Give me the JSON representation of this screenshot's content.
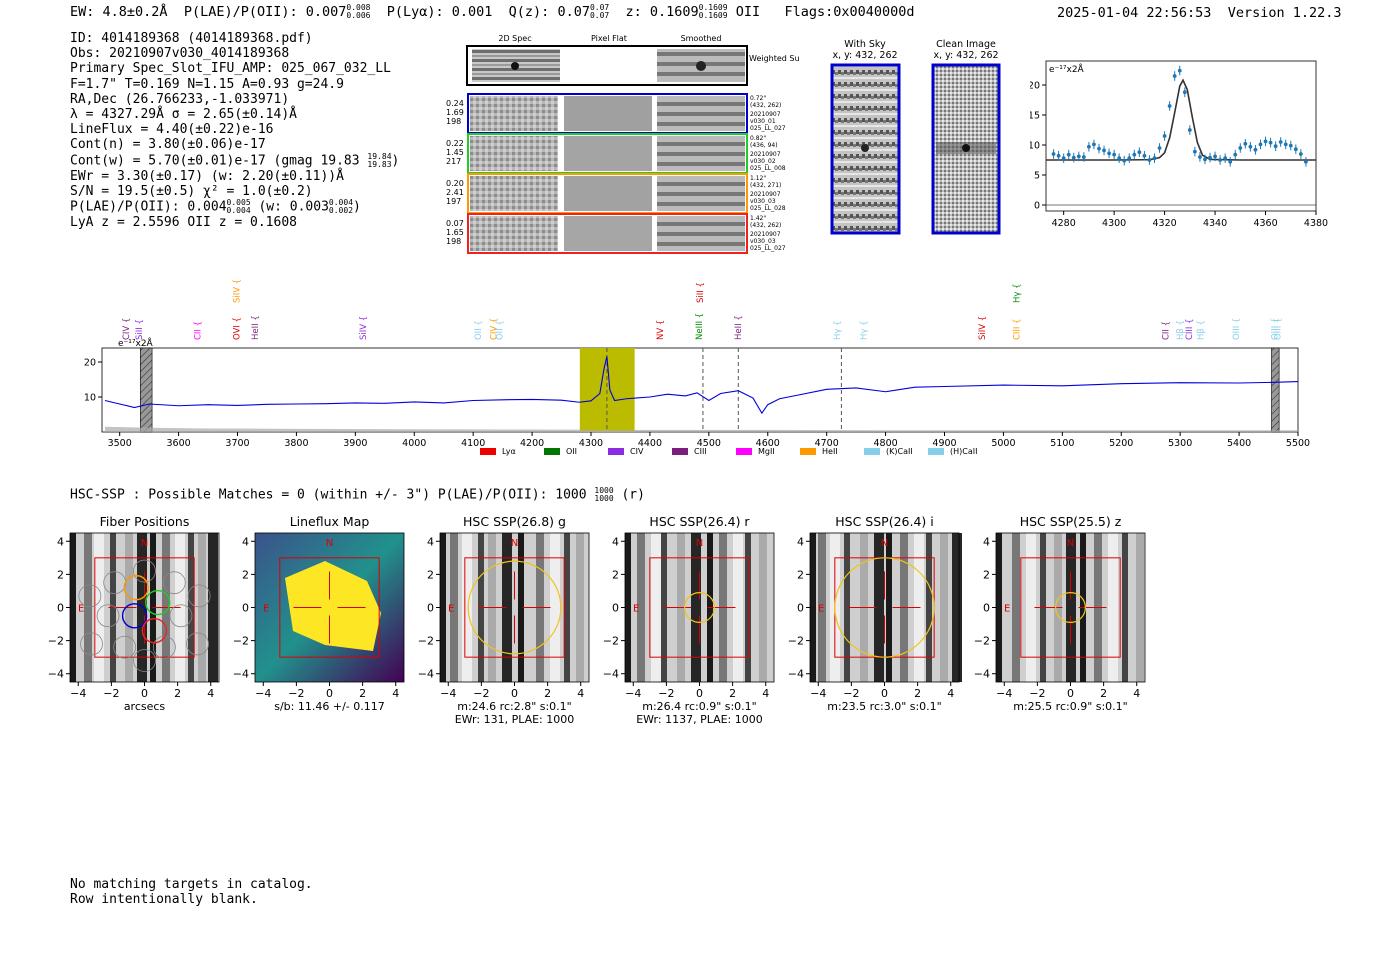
{
  "header": {
    "ew": "EW: 4.8±0.2Å",
    "plae": "P(LAE)/P(OII): 0.007",
    "plae_hi": "0.008",
    "plae_lo": "0.006",
    "plya": "P(Lyα): 0.001",
    "qz": "Q(z): 0.07",
    "qz_hi": "0.07",
    "qz_lo": "0.07",
    "z": "z: 0.1609",
    "z_hi": "0.1609",
    "z_lo": "0.1609",
    "z_line": "OII",
    "flags": "Flags:0x0040000d",
    "datetime": "2025-01-04 22:56:53",
    "version": "Version 1.22.3"
  },
  "info": {
    "id": "ID: 4014189368 (4014189368.pdf)",
    "obs": "Obs: 20210907v030_4014189368",
    "primary": "Primary Spec_Slot_IFU_AMP: 025_067_032_LL",
    "params": "F=1.7\"  T=0.169  N=1.15  A=0.93  g=24.9",
    "radec": "RA,Dec (26.766233,-1.033971)",
    "lambda": "λ = 4327.29Å   σ = 2.65(±0.14)Å",
    "lineflux": "LineFlux = 4.40(±0.22)e-16",
    "contn": "Cont(n) = 3.80(±0.06)e-17",
    "contw": "Cont(w) = 5.70(±0.01)e-17 (gmag 19.83",
    "gmag_hi": "19.84",
    "gmag_lo": "19.83",
    "contw_end": ")",
    "ewr": "EWr = 3.30(±0.17) (w: 2.20(±0.11))Å",
    "sn": "S/N = 19.5(±0.5)   χ² = 1.0(±0.2)",
    "plae2": "P(LAE)/P(OII): 0.004",
    "plae2_hi": "0.005",
    "plae2_lo": "0.004",
    "plae2_w": "(w: 0.003",
    "plae2_w_hi": "0.004",
    "plae2_w_lo": "0.002",
    "plae2_end": ")",
    "lyaz": "LyA z = 2.5596  OII z = 0.1608"
  },
  "cutouts": {
    "col_labels": [
      "2D Spec",
      "Pixel Flat",
      "Smoothed"
    ],
    "weighted_label": "Weighted Sum",
    "rows": [
      {
        "left": [
          "0.24",
          "1.69",
          "198"
        ],
        "right": [
          "0.72\"",
          "(432, 262)",
          "20210907",
          "v030_01",
          "025_LL_027"
        ],
        "color": "#0000cc"
      },
      {
        "left": [
          "0.22",
          "1.45",
          "217"
        ],
        "right": [
          "0.82\"",
          "(436, 94)",
          "20210907",
          "v030_02",
          "025_LL_008"
        ],
        "color": "#22cc22"
      },
      {
        "left": [
          "0.20",
          "2.41",
          "197"
        ],
        "right": [
          "1.12\"",
          "(432, 271)",
          "20210907",
          "v030_03",
          "025_LL_028"
        ],
        "color": "#ff9900"
      },
      {
        "left": [
          "0.07",
          "1.65",
          "198"
        ],
        "right": [
          "1.42\"",
          "(432, 262)",
          "20210907",
          "v030_03",
          "025_LL_027"
        ],
        "color": "#ee2222"
      }
    ]
  },
  "sky": {
    "with_sky_title": "With Sky",
    "with_sky_coords": "x, y: 432, 262",
    "clean_title": "Clean Image",
    "clean_coords": "x, y: 432, 262"
  },
  "fit_chart": {
    "unit_label": "e⁻¹⁷x2Å"
  },
  "spectrum_chart": {
    "unit_label": "e⁻¹⁷x2Å"
  },
  "matches": {
    "text": "HSC-SSP : Possible Matches = 0 (within +/- 3\")  P(LAE)/P(OII): 1000",
    "hi": "1000",
    "lo": "1000",
    "end": "(r)"
  },
  "panels": [
    {
      "title": "Fiber Positions",
      "xlabel": "arcsecs",
      "sub": ""
    },
    {
      "title": "Lineflux Map",
      "xlabel": "s/b: 11.46 +/- 0.117",
      "sub": ""
    },
    {
      "title": "HSC SSP(26.8) g",
      "xlabel": "m:24.6 rc:2.8\"  s:0.1\"",
      "sub": "EWr: 131, PLAE: 1000"
    },
    {
      "title": "HSC SSP(26.4) r",
      "xlabel": "m:26.4 rc:0.9\"  s:0.1\"",
      "sub": "EWr: 1137, PLAE: 1000"
    },
    {
      "title": "HSC SSP(26.4) i",
      "xlabel": "m:23.5 rc:3.0\"  s:0.1\"",
      "sub": ""
    },
    {
      "title": "HSC SSP(25.5) z",
      "xlabel": "m:25.5 rc:0.9\"  s:0.1\"",
      "sub": ""
    }
  ],
  "panel_marks": {
    "north": "N",
    "east": "E"
  },
  "footer": {
    "line1": "No matching targets in catalog.",
    "line2": "Row intentionally blank."
  },
  "chart_data": [
    {
      "type": "scatter",
      "title": "",
      "xlabel": "",
      "ylabel": "e⁻¹⁷x2Å",
      "xlim": [
        4273,
        4380
      ],
      "ylim": [
        -1,
        24
      ],
      "xticks": [
        4280,
        4300,
        4320,
        4340,
        4360,
        4380
      ],
      "yticks": [
        0,
        5,
        10,
        15,
        20
      ],
      "series": [
        {
          "kind": "points_with_errorbars",
          "color": "#1f77b4",
          "x": [
            4276,
            4278,
            4280,
            4282,
            4284,
            4286,
            4288,
            4290,
            4292,
            4294,
            4296,
            4298,
            4300,
            4302,
            4304,
            4306,
            4308,
            4310,
            4312,
            4314,
            4316,
            4318,
            4320,
            4322,
            4324,
            4326,
            4328,
            4330,
            4332,
            4334,
            4336,
            4338,
            4340,
            4342,
            4344,
            4346,
            4348,
            4350,
            4352,
            4354,
            4356,
            4358,
            4360,
            4362,
            4364,
            4366,
            4368,
            4370,
            4372,
            4374,
            4376
          ],
          "y": [
            8.5,
            8.2,
            7.8,
            8.4,
            7.9,
            8.1,
            8.0,
            9.7,
            10.1,
            9.4,
            9.1,
            8.6,
            8.4,
            7.8,
            7.4,
            7.8,
            8.4,
            8.8,
            8.2,
            7.5,
            7.8,
            9.5,
            11.5,
            16.5,
            21.5,
            22.4,
            18.8,
            12.5,
            8.9,
            8.0,
            7.6,
            7.9,
            8.1,
            7.5,
            7.8,
            7.2,
            8.4,
            9.5,
            10.2,
            9.7,
            9.2,
            10.1,
            10.6,
            10.4,
            9.8,
            10.5,
            10.1,
            9.9,
            9.3,
            8.5,
            7.2
          ],
          "err": 0.8
        },
        {
          "kind": "model_line",
          "color": "#333333",
          "x": [
            4273,
            4300,
            4314,
            4318,
            4320,
            4322,
            4324,
            4326,
            4327.3,
            4329,
            4331,
            4333,
            4335,
            4338,
            4350,
            4380
          ],
          "y": [
            7.5,
            7.5,
            7.55,
            7.9,
            8.7,
            11.2,
            15.4,
            19.8,
            20.8,
            19.2,
            14.6,
            10.4,
            8.3,
            7.6,
            7.5,
            7.5
          ]
        }
      ]
    },
    {
      "type": "line",
      "title": "",
      "xlabel": "",
      "ylabel": "e⁻¹⁷x2Å",
      "xlim": [
        3470,
        5500
      ],
      "ylim": [
        0,
        24
      ],
      "xticks": [
        3500,
        3600,
        3700,
        3800,
        3900,
        4000,
        4100,
        4200,
        4300,
        4400,
        4500,
        4600,
        4700,
        4800,
        4900,
        5000,
        5100,
        5200,
        5300,
        5400,
        5500
      ],
      "yticks": [
        10,
        20
      ],
      "series": [
        {
          "name": "spectrum",
          "color": "#0000dd",
          "x": [
            3475,
            3500,
            3525,
            3550,
            3600,
            3650,
            3700,
            3750,
            3800,
            3850,
            3900,
            3950,
            4000,
            4050,
            4100,
            4150,
            4200,
            4250,
            4280,
            4300,
            4315,
            4322,
            4327,
            4332,
            4340,
            4360,
            4400,
            4430,
            4460,
            4480,
            4500,
            4520,
            4550,
            4575,
            4590,
            4600,
            4620,
            4650,
            4700,
            4750,
            4800,
            4850,
            4900,
            5000,
            5100,
            5200,
            5300,
            5400,
            5460,
            5500
          ],
          "y": [
            9,
            8,
            7,
            8,
            7.5,
            7.8,
            7.6,
            7.9,
            8.0,
            8.1,
            8.3,
            8.2,
            8.6,
            8.3,
            9.0,
            9.2,
            9.3,
            9.1,
            8.5,
            8.9,
            11,
            18,
            21.6,
            12,
            9,
            9.5,
            10.0,
            10.8,
            10.3,
            11.2,
            9.0,
            11.0,
            11.8,
            9.7,
            5.4,
            7.8,
            9.5,
            10.5,
            12.2,
            12.6,
            11.5,
            12.8,
            13.0,
            13.4,
            13.2,
            13.8,
            14.1,
            14.0,
            14.2,
            14.4
          ]
        },
        {
          "name": "error",
          "color": "#aaaaaa",
          "x": [
            3475,
            3550,
            3650,
            3800,
            4000,
            4200,
            4400,
            4600,
            4800,
            5000,
            5200,
            5400,
            5500
          ],
          "y": [
            1.5,
            1.2,
            1.0,
            0.9,
            0.8,
            0.7,
            0.6,
            0.6,
            0.5,
            0.5,
            0.5,
            0.5,
            0.5
          ]
        }
      ],
      "highlight_band": {
        "x": [
          4281,
          4374
        ],
        "color": "#bbbb00"
      },
      "hatched_regions": [
        [
          3535,
          3555
        ],
        [
          5455,
          5468
        ]
      ],
      "dashed_lines": [
        4327,
        4490,
        4550,
        4725
      ],
      "line_labels": [
        {
          "label": "CIV",
          "x": 3516,
          "color": "#7a1f7a"
        },
        {
          "label": "SiII",
          "x": 3538,
          "color": "#8b2be2"
        },
        {
          "label": "CII",
          "x": 3637,
          "color": "#ff00ff"
        },
        {
          "label": "OVI",
          "x": 3703,
          "color": "#dd0000"
        },
        {
          "label": "SiIV",
          "x": 3703,
          "color": "#ff9900"
        },
        {
          "label": "HeII",
          "x": 3735,
          "color": "#7a1f7a"
        },
        {
          "label": "SiIV",
          "x": 3918,
          "color": "#8b2be2"
        },
        {
          "label": "OII",
          "x": 4113,
          "color": "#87ceeb"
        },
        {
          "label": "CIV",
          "x": 4140,
          "color": "#ff9900"
        },
        {
          "label": "OII",
          "x": 4150,
          "color": "#87ceeb"
        },
        {
          "label": "NV",
          "x": 4422,
          "color": "#dd0000"
        },
        {
          "label": "NeIII",
          "x": 4488,
          "color": "#008800"
        },
        {
          "label": "SiII",
          "x": 4490,
          "color": "#dd0000"
        },
        {
          "label": "HeII",
          "x": 4555,
          "color": "#7a1f7a"
        },
        {
          "label": "Hγ",
          "x": 4723,
          "color": "#87ceeb"
        },
        {
          "label": "Hγ",
          "x": 4768,
          "color": "#87ceeb"
        },
        {
          "label": "SiIV",
          "x": 4969,
          "color": "#dd0000"
        },
        {
          "label": "CIII",
          "x": 5027,
          "color": "#ff9900"
        },
        {
          "label": "Hγ",
          "x": 5027,
          "color": "#008800"
        },
        {
          "label": "CII",
          "x": 5280,
          "color": "#7a1f7a"
        },
        {
          "label": "Hβ",
          "x": 5305,
          "color": "#87ceeb"
        },
        {
          "label": "CIII",
          "x": 5320,
          "color": "#8b2be2"
        },
        {
          "label": "Hβ",
          "x": 5340,
          "color": "#87ceeb"
        },
        {
          "label": "OIII",
          "x": 5400,
          "color": "#87ceeb"
        },
        {
          "label": "OIII",
          "x": 5465,
          "color": "#87ceeb"
        },
        {
          "label": "OIII",
          "x": 5470,
          "color": "#87ceeb"
        }
      ],
      "legend": [
        {
          "name": "Lyα",
          "color": "#ee0000"
        },
        {
          "name": "OII",
          "color": "#007700"
        },
        {
          "name": "CIV",
          "color": "#8b2be2"
        },
        {
          "name": "CIII",
          "color": "#7a1f7a"
        },
        {
          "name": "MgII",
          "color": "#ff00ff"
        },
        {
          "name": "HeII",
          "color": "#ff9900"
        },
        {
          "name": "(K)CaII",
          "color": "#87ceeb"
        },
        {
          "name": "(H)CaII",
          "color": "#87ceeb"
        }
      ],
      "legend_position": "bottom"
    }
  ]
}
